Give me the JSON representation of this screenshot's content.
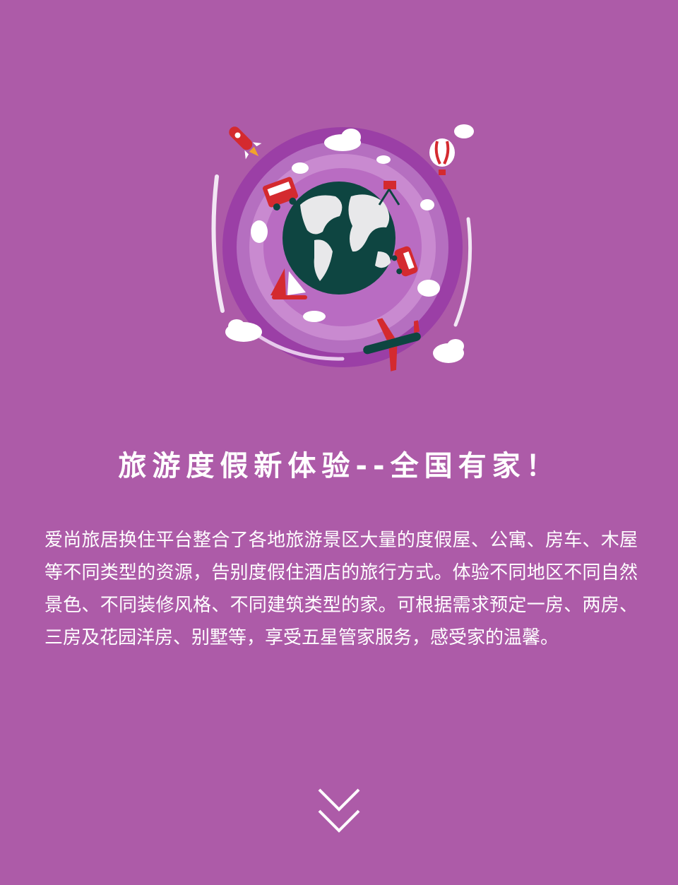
{
  "hero": {
    "icon": "globe-travel-illustration",
    "colors": {
      "background": "#ad5ba8",
      "ring": "#9b3fa6",
      "ring_light": "#c98ad0",
      "ocean": "#0e4541",
      "land": "#e8e8ea",
      "vehicle_red": "#d42a2f"
    }
  },
  "title": "旅游度假新体验--全国有家！",
  "description": "爱尚旅居换住平台整合了各地旅游景区大量的度假屋、公寓、房车、木屋等不同类型的资源，告别度假住酒店的旅行方式。体验不同地区不同自然景色、不同装修风格、不同建筑类型的家。可根据需求预定一房、两房、三房及花园洋房、别墅等，享受五星管家服务，感受家的温馨。",
  "scroll_icon": "double-chevron-down-icon"
}
